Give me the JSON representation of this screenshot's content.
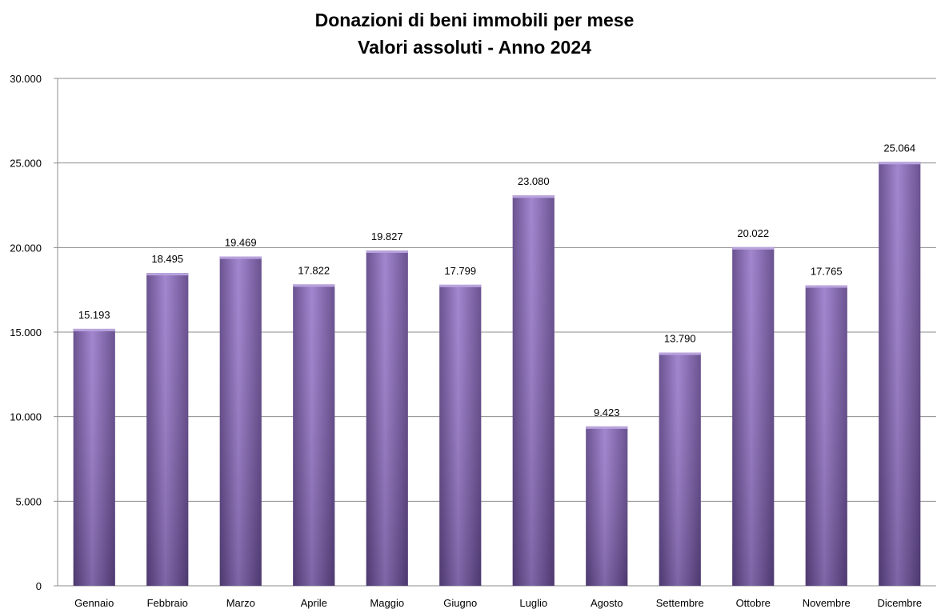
{
  "chart_data": {
    "type": "bar",
    "title": "Donazioni di beni immobili per mese",
    "subtitle": "Valori assoluti - Anno 2024",
    "xlabel": "",
    "ylabel": "",
    "categories": [
      "Gennaio",
      "Febbraio",
      "Marzo",
      "Aprile",
      "Maggio",
      "Giugno",
      "Luglio",
      "Agosto",
      "Settembre",
      "Ottobre",
      "Novembre",
      "Dicembre"
    ],
    "values": [
      15193,
      18495,
      19469,
      17822,
      19827,
      17799,
      23080,
      9423,
      13790,
      20022,
      17765,
      25064
    ],
    "value_labels": [
      "15.193",
      "18.495",
      "19.469",
      "17.822",
      "19.827",
      "17.799",
      "23.080",
      "9.423",
      "13.790",
      "20.022",
      "17.765",
      "25.064"
    ],
    "ylim": [
      0,
      30000
    ],
    "yticks": [
      0,
      5000,
      10000,
      15000,
      20000,
      25000,
      30000
    ],
    "ytick_labels": [
      "0",
      "5.000",
      "10.000",
      "15.000",
      "20.000",
      "25.000",
      "30.000"
    ],
    "grid": true,
    "legend": "none",
    "colors": {
      "bar": "#7f5fb0",
      "bar_dark": "#5e4487",
      "bar_light": "#9a7ccb",
      "grid": "#8c8c8c"
    }
  }
}
